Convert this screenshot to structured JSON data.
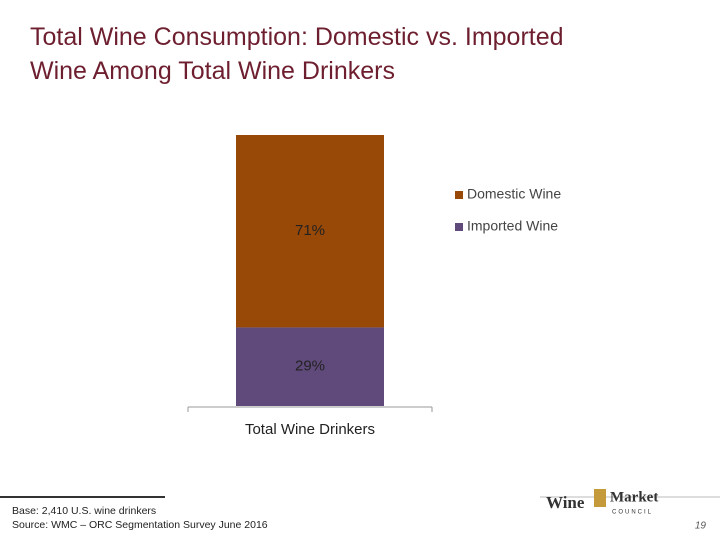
{
  "chart_data": {
    "type": "stacked-bar",
    "title": "Total Wine Consumption: Domestic vs. Imported Wine Among Total Wine Drinkers",
    "categories": [
      "Total Wine Drinkers"
    ],
    "series": [
      {
        "name": "Domestic Wine",
        "color": "#984807",
        "values": [
          71
        ],
        "value_labels": [
          "71%"
        ]
      },
      {
        "name": "Imported Wine",
        "color": "#5f4a7b",
        "values": [
          29
        ],
        "value_labels": [
          "29%"
        ]
      }
    ],
    "legend": "right"
  },
  "footer": {
    "base": "Base: 2,410 U.S. wine drinkers",
    "source": "Source: WMC – ORC Segmentation Survey June 2016",
    "logo_word": "Wine",
    "logo_market": "Market",
    "logo_council": "COUNCIL",
    "page_number": "19"
  }
}
